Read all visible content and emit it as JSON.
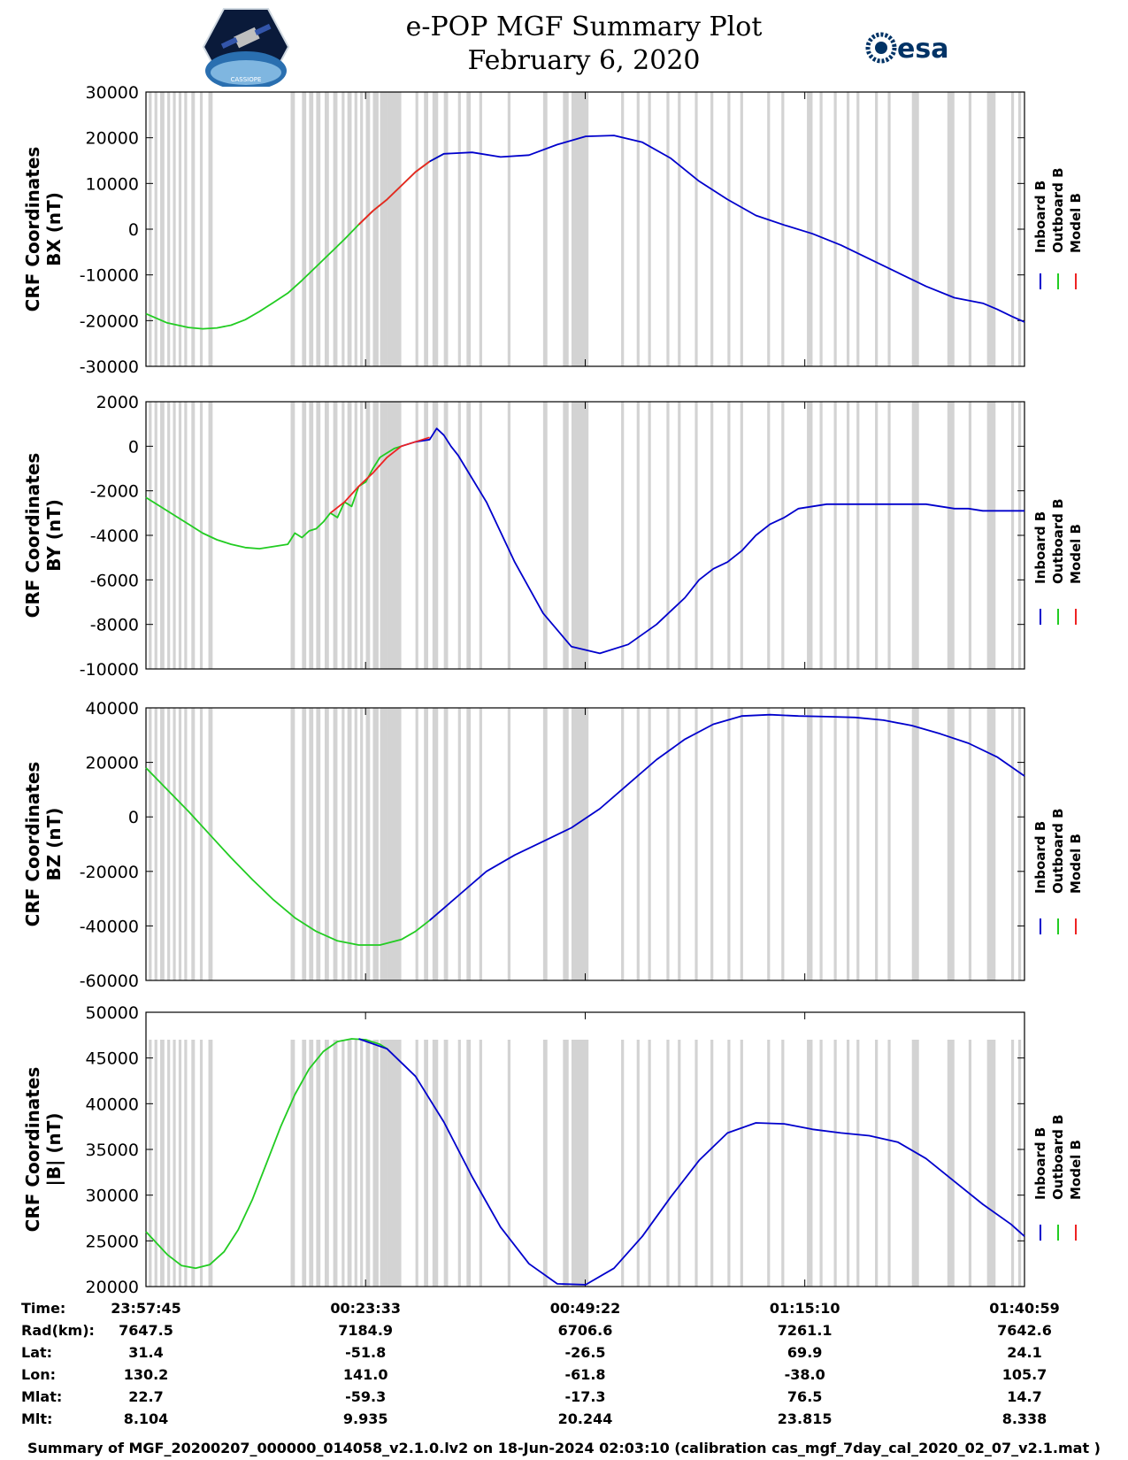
{
  "header": {
    "title_line1": "e-POP MGF Summary Plot",
    "title_line2": "February 6, 2020",
    "left_logo": "cassiope-satellite-logo",
    "left_logo_text": "CASSIOPE",
    "right_logo": "esa-logo",
    "right_logo_text": "esa"
  },
  "colors": {
    "inboard": "#0000cc",
    "outboard": "#22cc22",
    "model": "#ee2222",
    "gap_shade": "#d3d3d3"
  },
  "legend": [
    "Inboard B",
    "Outboard B",
    "Model B"
  ],
  "chart_data": [
    {
      "type": "line",
      "ylabel": [
        "CRF Coordinates",
        "BX (nT)"
      ],
      "ylim": [
        -30000,
        30000
      ],
      "yticks": [
        "30000",
        "20000",
        "10000",
        "0",
        "-10000",
        "-20000",
        "-30000"
      ],
      "xlim": [
        0,
        6194
      ],
      "series": [
        {
          "name": "Outboard B",
          "color": "outboard",
          "x": [
            0,
            150,
            300,
            400,
            500,
            600,
            700,
            800,
            900,
            1000,
            1100,
            1200,
            1300,
            1400,
            1500,
            1600,
            1700,
            1800,
            1900,
            2000,
            2100
          ],
          "y": [
            -18500,
            -20500,
            -21500,
            -21800,
            -21600,
            -21000,
            -19800,
            -18000,
            -16000,
            -14000,
            -11200,
            -8200,
            -5200,
            -2200,
            1000,
            4000,
            6500,
            9500,
            12500,
            14800,
            16500
          ]
        },
        {
          "name": "Inboard B",
          "color": "inboard",
          "x": [
            2000,
            2100,
            2300,
            2500,
            2700,
            2900,
            3100,
            3300,
            3500,
            3700,
            3900,
            4100,
            4300,
            4500,
            4700,
            4900,
            5100,
            5300,
            5500,
            5700,
            5900,
            6000,
            6100,
            6194
          ],
          "y": [
            14800,
            16500,
            16800,
            15800,
            16200,
            18500,
            20300,
            20500,
            19000,
            15500,
            10500,
            6500,
            3000,
            900,
            -1000,
            -3500,
            -6500,
            -9500,
            -12500,
            -15000,
            -16200,
            -17500,
            -19000,
            -20300
          ]
        },
        {
          "name": "Model B",
          "color": "model",
          "x": [
            1500,
            1600,
            1700,
            1800,
            1900,
            2000
          ],
          "y": [
            1000,
            4000,
            6500,
            9500,
            12500,
            14800
          ]
        }
      ]
    },
    {
      "type": "line",
      "ylabel": [
        "CRF Coordinates",
        "BY (nT)"
      ],
      "ylim": [
        -10000,
        2000
      ],
      "yticks": [
        "2000",
        "0",
        "-2000",
        "-4000",
        "-6000",
        "-8000",
        "-10000"
      ],
      "xlim": [
        0,
        6194
      ],
      "series": [
        {
          "name": "Outboard B",
          "color": "outboard",
          "x": [
            0,
            100,
            200,
            300,
            400,
            500,
            600,
            700,
            800,
            900,
            1000,
            1050,
            1100,
            1150,
            1200,
            1250,
            1300,
            1350,
            1400,
            1450,
            1500,
            1550,
            1600,
            1650,
            1700,
            1750,
            1800
          ],
          "y": [
            -2300,
            -2700,
            -3100,
            -3500,
            -3900,
            -4200,
            -4400,
            -4550,
            -4600,
            -4500,
            -4400,
            -3900,
            -4100,
            -3800,
            -3700,
            -3400,
            -3000,
            -3200,
            -2500,
            -2700,
            -1800,
            -1600,
            -1000,
            -500,
            -300,
            -100,
            0
          ]
        },
        {
          "name": "Inboard B",
          "color": "inboard",
          "x": [
            1800,
            1900,
            2000,
            2050,
            2100,
            2150,
            2200,
            2400,
            2600,
            2800,
            3000,
            3200,
            3400,
            3600,
            3800,
            3900,
            4000,
            4100,
            4200,
            4300,
            4400,
            4500,
            4600,
            4800,
            5000,
            5200,
            5400,
            5500,
            5600,
            5700,
            5800,
            5900,
            6000,
            6100,
            6194
          ],
          "y": [
            0,
            200,
            300,
            800,
            500,
            0,
            -400,
            -2500,
            -5200,
            -7500,
            -9000,
            -9300,
            -8900,
            -8000,
            -6800,
            -6000,
            -5500,
            -5200,
            -4700,
            -4000,
            -3500,
            -3200,
            -2800,
            -2600,
            -2600,
            -2600,
            -2600,
            -2600,
            -2700,
            -2800,
            -2800,
            -2900,
            -2900,
            -2900,
            -2900
          ]
        },
        {
          "name": "Model B",
          "color": "model",
          "x": [
            1300,
            1400,
            1500,
            1600,
            1700,
            1800,
            1900,
            2000
          ],
          "y": [
            -3000,
            -2500,
            -1800,
            -1200,
            -500,
            0,
            200,
            400
          ]
        }
      ]
    },
    {
      "type": "line",
      "ylabel": [
        "CRF Coordinates",
        "BZ (nT)"
      ],
      "ylim": [
        -60000,
        40000
      ],
      "yticks": [
        "40000",
        "20000",
        "0",
        "-20000",
        "-40000",
        "-60000"
      ],
      "xlim": [
        0,
        6194
      ],
      "series": [
        {
          "name": "Outboard B",
          "color": "outboard",
          "x": [
            0,
            150,
            300,
            450,
            600,
            750,
            900,
            1050,
            1200,
            1350,
            1500,
            1650,
            1800,
            1900,
            2000
          ],
          "y": [
            18000,
            10000,
            2000,
            -6500,
            -15000,
            -23000,
            -30500,
            -37000,
            -42000,
            -45500,
            -47000,
            -47000,
            -45000,
            -42000,
            -38000
          ]
        },
        {
          "name": "Inboard B",
          "color": "inboard",
          "x": [
            2000,
            2200,
            2400,
            2600,
            2800,
            3000,
            3200,
            3400,
            3600,
            3800,
            4000,
            4200,
            4400,
            4600,
            4800,
            5000,
            5200,
            5400,
            5600,
            5800,
            6000,
            6194
          ],
          "y": [
            -38000,
            -29000,
            -20000,
            -14000,
            -9000,
            -4000,
            3000,
            12000,
            21000,
            28500,
            34000,
            37000,
            37500,
            37000,
            36800,
            36500,
            35500,
            33500,
            30500,
            27000,
            22000,
            15000
          ]
        },
        {
          "name": "Model B",
          "color": "model",
          "x": [],
          "y": []
        }
      ]
    },
    {
      "type": "line",
      "ylabel": [
        "CRF Coordinates",
        "|B| (nT)"
      ],
      "ylim": [
        20000,
        50000
      ],
      "yticks": [
        "50000",
        "45000",
        "40000",
        "35000",
        "30000",
        "25000",
        "20000"
      ],
      "xlim": [
        0,
        6194
      ],
      "series": [
        {
          "name": "Outboard B",
          "color": "outboard",
          "x": [
            0,
            150,
            250,
            350,
            450,
            550,
            650,
            750,
            850,
            950,
            1050,
            1150,
            1250,
            1350,
            1450,
            1550,
            1650,
            1700
          ],
          "y": [
            26000,
            23500,
            22300,
            22000,
            22400,
            23800,
            26200,
            29500,
            33500,
            37500,
            41000,
            43800,
            45700,
            46800,
            47100,
            47000,
            46500,
            46000
          ]
        },
        {
          "name": "Inboard B",
          "color": "inboard",
          "x": [
            1500,
            1700,
            1900,
            2100,
            2300,
            2500,
            2700,
            2900,
            3100,
            3300,
            3500,
            3700,
            3900,
            4100,
            4300,
            4500,
            4700,
            4900,
            5100,
            5300,
            5500,
            5700,
            5900,
            6100,
            6194
          ],
          "y": [
            47100,
            46000,
            43000,
            38000,
            32000,
            26500,
            22500,
            20300,
            20200,
            22000,
            25500,
            29800,
            33800,
            36800,
            37900,
            37800,
            37200,
            36800,
            36500,
            35800,
            34000,
            31500,
            29000,
            26800,
            25500
          ]
        },
        {
          "name": "Model B",
          "color": "model",
          "x": [],
          "y": []
        }
      ]
    }
  ],
  "gap_shading": {
    "top_limit_panel4": 47000,
    "bands": [
      [
        20,
        40
      ],
      [
        60,
        80
      ],
      [
        100,
        130
      ],
      [
        150,
        170
      ],
      [
        190,
        210
      ],
      [
        230,
        250
      ],
      [
        270,
        290
      ],
      [
        320,
        345
      ],
      [
        380,
        400
      ],
      [
        440,
        470
      ],
      [
        1020,
        1050
      ],
      [
        1100,
        1130
      ],
      [
        1150,
        1180
      ],
      [
        1200,
        1230
      ],
      [
        1260,
        1290
      ],
      [
        1320,
        1350
      ],
      [
        1380,
        1400
      ],
      [
        1420,
        1450
      ],
      [
        1470,
        1490
      ],
      [
        1510,
        1530
      ],
      [
        1550,
        1580
      ],
      [
        1600,
        1640
      ],
      [
        1650,
        1700
      ],
      [
        1700,
        1800
      ],
      [
        1900,
        1920
      ],
      [
        1960,
        1990
      ],
      [
        2020,
        2060
      ],
      [
        2100,
        2130
      ],
      [
        2200,
        2220
      ],
      [
        2260,
        2290
      ],
      [
        2350,
        2370
      ],
      [
        2550,
        2570
      ],
      [
        2800,
        2830
      ],
      [
        2940,
        2980
      ],
      [
        3000,
        3120
      ],
      [
        3350,
        3370
      ],
      [
        3460,
        3480
      ],
      [
        3540,
        3560
      ],
      [
        3670,
        3690
      ],
      [
        3750,
        3770
      ],
      [
        3870,
        3890
      ],
      [
        3980,
        4000
      ],
      [
        4100,
        4120
      ],
      [
        4190,
        4210
      ],
      [
        4380,
        4400
      ],
      [
        4480,
        4500
      ],
      [
        4660,
        4700
      ],
      [
        4750,
        4770
      ],
      [
        4850,
        4870
      ],
      [
        4940,
        4960
      ],
      [
        5010,
        5030
      ],
      [
        5140,
        5160
      ],
      [
        5230,
        5250
      ],
      [
        5400,
        5450
      ],
      [
        5650,
        5700
      ],
      [
        5800,
        5820
      ],
      [
        5930,
        5990
      ],
      [
        6100,
        6120
      ],
      [
        6150,
        6170
      ]
    ]
  },
  "x_axis": {
    "tick_values": [
      0,
      1548,
      3097,
      4645,
      6194
    ],
    "row_labels": [
      "Time:",
      "Rad(km):",
      "Lat:",
      "Lon:",
      "Mlat:",
      "Mlt:"
    ],
    "columns": [
      [
        "23:57:45",
        "7647.5",
        "31.4",
        "130.2",
        "22.7",
        "8.104"
      ],
      [
        "00:23:33",
        "7184.9",
        "-51.8",
        "141.0",
        "-59.3",
        "9.935"
      ],
      [
        "00:49:22",
        "6706.6",
        "-26.5",
        "-61.8",
        "-17.3",
        "20.244"
      ],
      [
        "01:15:10",
        "7261.1",
        "69.9",
        "-38.0",
        "76.5",
        "23.815"
      ],
      [
        "01:40:59",
        "7642.6",
        "24.1",
        "105.7",
        "14.7",
        "8.338"
      ]
    ]
  },
  "footer": {
    "text": "Summary of MGF_20200207_000000_014058_v2.1.0.lv2 on 18-Jun-2024 02:03:10 (calibration cas_mgf_7day_cal_2020_02_07_v2.1.mat )"
  }
}
